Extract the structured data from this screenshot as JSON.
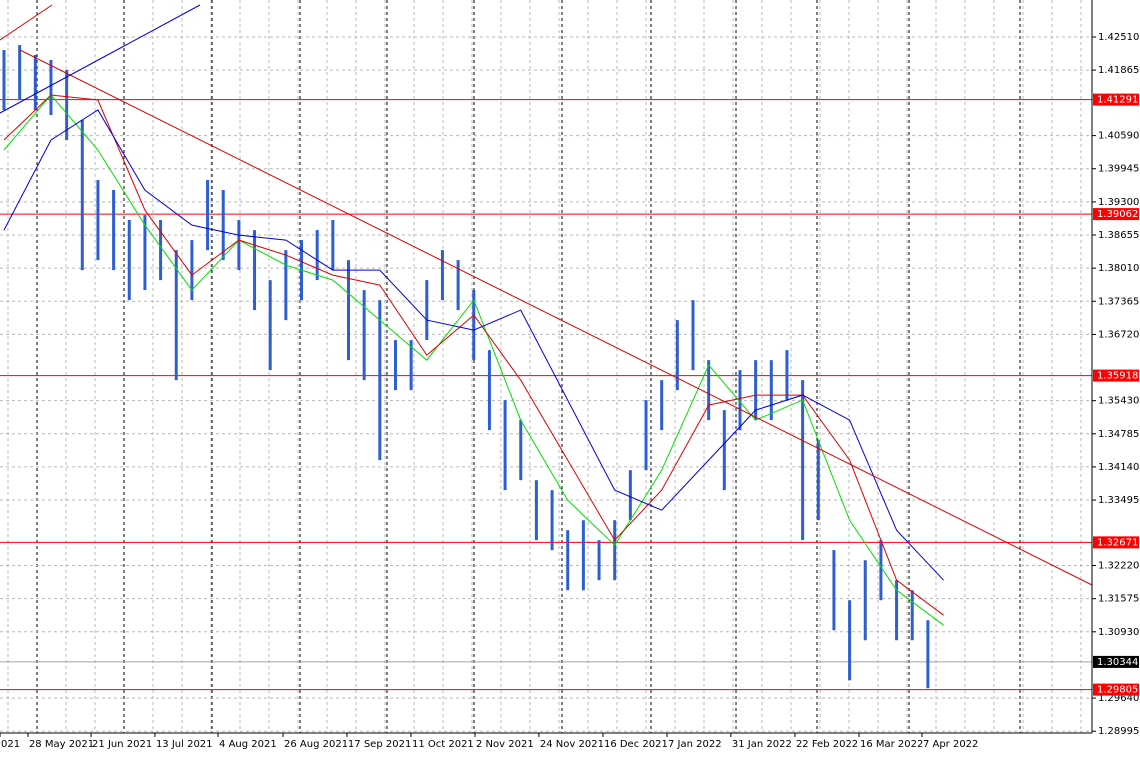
{
  "chart_data": {
    "type": "ohlc",
    "bar_color": "#2e5fd0",
    "xlim": [
      -0.255,
      69.48
    ],
    "ylim": [
      1.2896,
      1.4323
    ],
    "grid": true,
    "xticks": [
      {
        "value": -0.255,
        "label": "021"
      },
      {
        "value": 1.53,
        "label": "28 May 2021"
      },
      {
        "value": 5.56,
        "label": "21 Jun 2021"
      },
      {
        "value": 9.64,
        "label": "13 Jul 2021"
      },
      {
        "value": 13.67,
        "label": "4 Aug 2021"
      },
      {
        "value": 17.82,
        "label": "26 Aug 2021"
      },
      {
        "value": 21.9,
        "label": "17 Sep 2021"
      },
      {
        "value": 25.99,
        "label": "11 Oct 2021"
      },
      {
        "value": 30.08,
        "label": "2 Nov 2021"
      },
      {
        "value": 34.16,
        "label": "24 Nov 2021"
      },
      {
        "value": 38.25,
        "label": "16 Dec 2021"
      },
      {
        "value": 42.34,
        "label": "7 Jan 2022"
      },
      {
        "value": 46.42,
        "label": "31 Jan 2022"
      },
      {
        "value": 50.51,
        "label": "22 Feb 2022"
      },
      {
        "value": 54.6,
        "label": "16 Mar 2022"
      },
      {
        "value": 58.62,
        "label": "7 Apr 2022"
      }
    ],
    "yticks": [
      {
        "value": 1.4251,
        "label": "1.42510"
      },
      {
        "value": 1.41865,
        "label": "1.41865"
      },
      {
        "value": 1.4059,
        "label": "1.40590"
      },
      {
        "value": 1.39945,
        "label": "1.39945"
      },
      {
        "value": 1.393,
        "label": "1.39300"
      },
      {
        "value": 1.38655,
        "label": "1.38655"
      },
      {
        "value": 1.3801,
        "label": "1.38010"
      },
      {
        "value": 1.37365,
        "label": "1.37365"
      },
      {
        "value": 1.3672,
        "label": "1.36720"
      },
      {
        "value": 1.3543,
        "label": "1.35430"
      },
      {
        "value": 1.34785,
        "label": "1.34785"
      },
      {
        "value": 1.3414,
        "label": "1.34140"
      },
      {
        "value": 1.33495,
        "label": "1.33495"
      },
      {
        "value": 1.3222,
        "label": "1.32220"
      },
      {
        "value": 1.31575,
        "label": "1.31575"
      },
      {
        "value": 1.3093,
        "label": "1.30930"
      },
      {
        "value": 1.2964,
        "label": "1.29640"
      },
      {
        "value": 1.28995,
        "label": "1.28995"
      }
    ],
    "high": [
      1.42256,
      1.42354,
      1.42159,
      1.42062,
      1.41867,
      1.40893,
      1.39725,
      1.3953,
      1.38946,
      1.39043,
      1.38946,
      1.38361,
      1.38556,
      1.39725,
      1.3953,
      1.38946,
      1.38751,
      1.37777,
      1.38361,
      1.38556,
      1.38751,
      1.38946,
      1.38167,
      1.37582,
      1.37388,
      1.36609,
      1.36609,
      1.37777,
      1.38361,
      1.38167,
      1.37582,
      1.36414,
      1.3544,
      1.35051,
      1.33882,
      1.33688,
      1.32909,
      1.33103,
      1.32714,
      1.33103,
      1.34077,
      1.3544,
      1.3583,
      1.36998,
      1.37388,
      1.36219,
      1.35246,
      1.36025,
      1.36219,
      1.36219,
      1.36414,
      1.3583,
      1.34661,
      1.32519,
      1.31545,
      1.32324,
      1.32714,
      1.31935,
      1.3174,
      1.31156
    ],
    "low": [
      1.41088,
      1.41283,
      1.41088,
      1.4099,
      1.40504,
      1.37972,
      1.38167,
      1.37972,
      1.37388,
      1.37582,
      1.37777,
      1.3583,
      1.37388,
      1.38361,
      1.38167,
      1.37972,
      1.37193,
      1.36025,
      1.36998,
      1.37388,
      1.37777,
      1.37972,
      1.36219,
      1.3583,
      1.34272,
      1.35635,
      1.35635,
      1.36609,
      1.37388,
      1.37193,
      1.36219,
      1.34856,
      1.33688,
      1.33882,
      1.32714,
      1.32519,
      1.3174,
      1.3174,
      1.31935,
      1.31935,
      1.33103,
      1.34077,
      1.34856,
      1.35635,
      1.36025,
      1.35051,
      1.33688,
      1.34856,
      1.35051,
      1.35051,
      1.3544,
      1.32714,
      1.33103,
      1.30961,
      1.29987,
      1.30766,
      1.31545,
      1.30766,
      1.30766,
      1.29832
    ],
    "ma_x": [
      0,
      3,
      6,
      9,
      12,
      15,
      18,
      21,
      24,
      27,
      30,
      33,
      36,
      39,
      42,
      45,
      48,
      51,
      54,
      57,
      60
    ],
    "series": [
      {
        "color": "#00e000",
        "values": [
          1.40309,
          1.4138,
          1.40309,
          1.38848,
          1.37582,
          1.38556,
          1.38069,
          1.37777,
          1.36998,
          1.36219,
          1.37388,
          1.35051,
          1.33493,
          1.32617,
          1.34077,
          1.36122,
          1.35051,
          1.3544,
          1.33103,
          1.3174,
          1.31059
        ]
      },
      {
        "color": "#e00000",
        "values": [
          1.40504,
          1.4138,
          1.41283,
          1.3914,
          1.37875,
          1.38556,
          1.38264,
          1.37875,
          1.3768,
          1.36317,
          1.37096,
          1.3583,
          1.34272,
          1.32714,
          1.33688,
          1.35343,
          1.35538,
          1.35538,
          1.34272,
          1.31935,
          1.31253
        ]
      },
      {
        "color": "#0000e0",
        "values": [
          1.38751,
          1.40504,
          1.41088,
          1.3953,
          1.38848,
          1.38654,
          1.38556,
          1.37972,
          1.37972,
          1.36998,
          1.36804,
          1.37193,
          1.3544,
          1.33688,
          1.33298,
          1.34272,
          1.35246,
          1.35538,
          1.35051,
          1.32909,
          1.31935
        ]
      }
    ],
    "levels": [
      1.41291,
      1.39062,
      1.35918,
      1.32671,
      1.29805
    ],
    "level_color": "#ff0000",
    "last_price": 1.30344
  }
}
